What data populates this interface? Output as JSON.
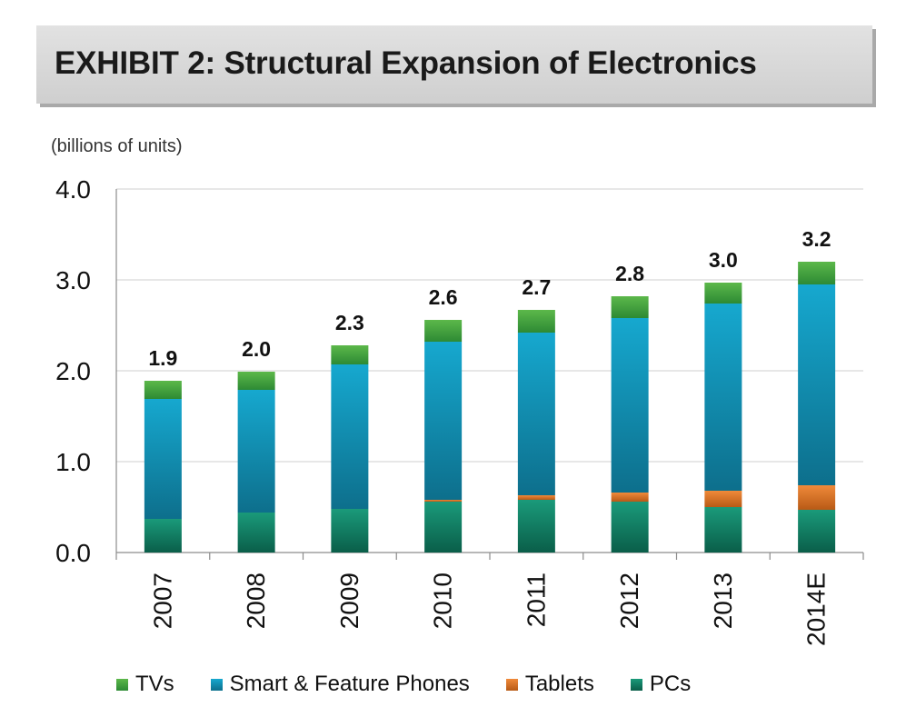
{
  "header": {
    "title": "EXHIBIT 2: Structural Expansion of Electronics"
  },
  "units_label": "(billions of units)",
  "colors": {
    "TVs": [
      "#5cb84a",
      "#2d8a34"
    ],
    "Smart & Feature Phones": [
      "#16a8cf",
      "#0d6f8c"
    ],
    "Tablets": [
      "#f08a3a",
      "#b85a16"
    ],
    "PCs": [
      "#1a9a7a",
      "#0a5e49"
    ]
  },
  "chart_data": {
    "type": "bar",
    "stacked": true,
    "categories": [
      "2007",
      "2008",
      "2009",
      "2010",
      "2011",
      "2012",
      "2013",
      "2014E"
    ],
    "series": [
      {
        "name": "PCs",
        "values": [
          0.37,
          0.44,
          0.48,
          0.56,
          0.58,
          0.56,
          0.5,
          0.47
        ]
      },
      {
        "name": "Tablets",
        "values": [
          0.0,
          0.0,
          0.0,
          0.02,
          0.05,
          0.1,
          0.18,
          0.27
        ]
      },
      {
        "name": "Smart & Feature Phones",
        "values": [
          1.32,
          1.35,
          1.59,
          1.74,
          1.79,
          1.92,
          2.06,
          2.21
        ]
      },
      {
        "name": "TVs",
        "values": [
          0.2,
          0.2,
          0.21,
          0.24,
          0.25,
          0.24,
          0.23,
          0.25
        ]
      }
    ],
    "totals": [
      "1.9",
      "2.0",
      "2.3",
      "2.6",
      "2.7",
      "2.8",
      "3.0",
      "3.2"
    ],
    "y_ticks": [
      "0.0",
      "1.0",
      "2.0",
      "3.0",
      "4.0"
    ],
    "ylim": [
      0,
      4
    ],
    "ylabel": "(billions of units)",
    "xlabel": "",
    "grid": true,
    "legend": [
      "TVs",
      "Smart & Feature Phones",
      "Tablets",
      "PCs"
    ],
    "legend_position": "bottom"
  }
}
